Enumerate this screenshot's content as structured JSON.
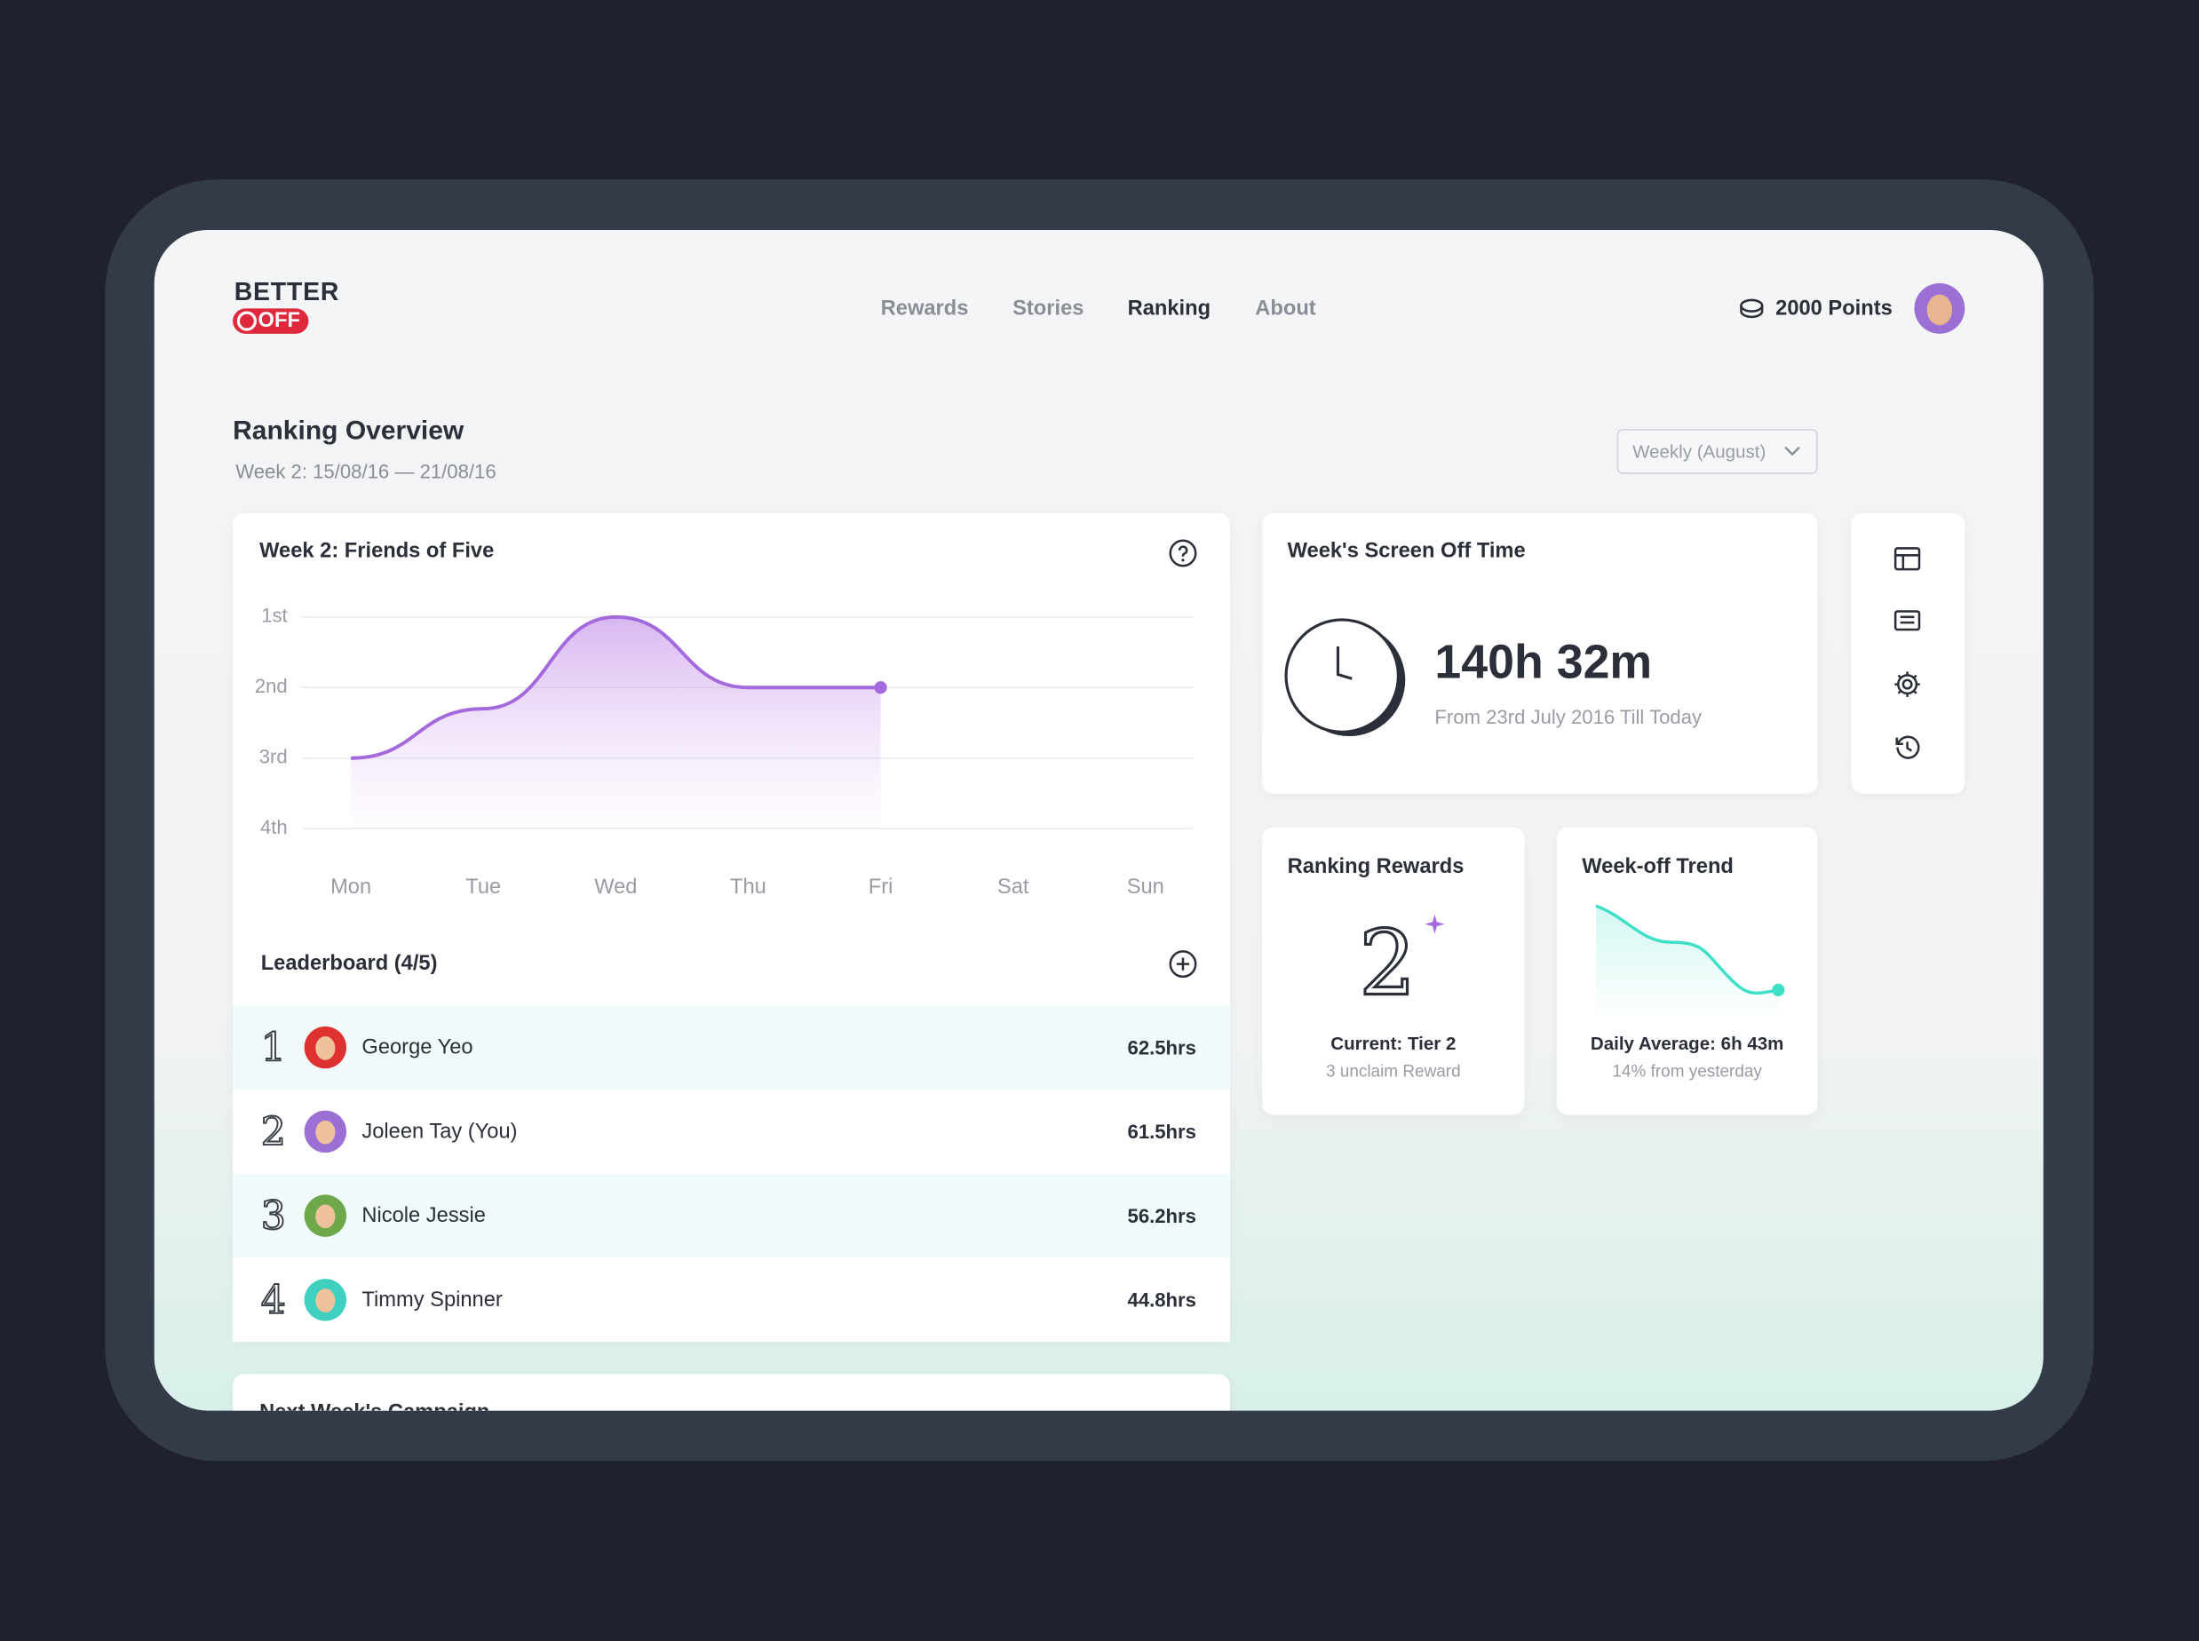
{
  "header": {
    "logo_top": "BETTER",
    "logo_bottom": "OFF",
    "nav": [
      "Rewards",
      "Stories",
      "Ranking",
      "About"
    ],
    "points": "2000 Points"
  },
  "overview": {
    "title": "Ranking Overview",
    "subtitle": "Week 2: 15/08/16 — 21/08/16",
    "filter": "Weekly (August)"
  },
  "chart_data": {
    "type": "line",
    "title": "Week 2: Friends of Five",
    "categories": [
      "Mon",
      "Tue",
      "Wed",
      "Thu",
      "Fri",
      "Sat",
      "Sun"
    ],
    "values": [
      3,
      2.3,
      1,
      2,
      2,
      null,
      null
    ],
    "color": "#a469dc",
    "ylim": [
      4,
      1
    ],
    "yticks": [
      {
        "value": 1,
        "label": "1st"
      },
      {
        "value": 2,
        "label": "2nd"
      },
      {
        "value": 3,
        "label": "3rd"
      },
      {
        "value": 4,
        "label": "4th"
      }
    ],
    "grid": true
  },
  "leaderboard": {
    "title": "Leaderboard (4/5)",
    "rows": [
      {
        "rank": 1,
        "name": "George Yeo",
        "hours": "62.5hrs"
      },
      {
        "rank": 2,
        "name": "Joleen Tay (You)",
        "hours": "61.5hrs"
      },
      {
        "rank": 3,
        "name": "Nicole Jessie",
        "hours": "56.2hrs"
      },
      {
        "rank": 4,
        "name": "Timmy Spinner",
        "hours": "44.8hrs"
      }
    ]
  },
  "campaign": {
    "title": "Next Week's Campaign"
  },
  "screen_off": {
    "title": "Week's Screen Off Time",
    "total": "140h 32m",
    "since": "From 23rd July 2016 Till Today"
  },
  "rewards": {
    "title": "Ranking Rewards",
    "tier_number": 2,
    "current": "Current: Tier 2",
    "unclaimed": "3 unclaim Reward"
  },
  "trend": {
    "title": "Week-off Trend",
    "average": "Daily Average: 6h 43m",
    "change": "14% from yesterday"
  }
}
